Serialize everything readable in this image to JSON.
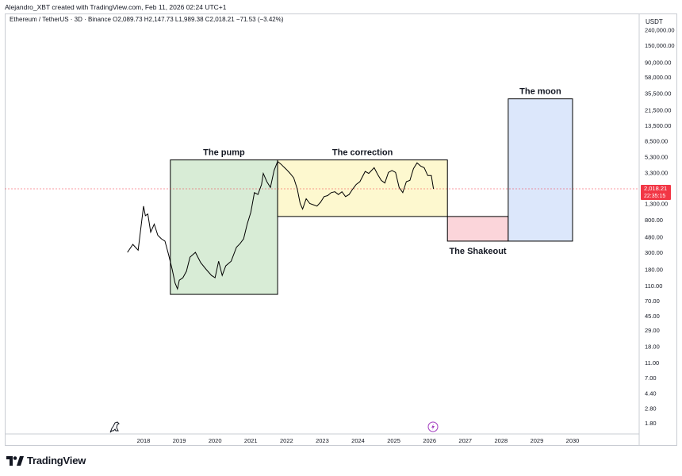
{
  "header": {
    "attribution": "Alejandro_XBT created with TradingView.com, Feb 11, 2026 02:24 UTC+1"
  },
  "symbol": {
    "name": "Ethereum / TetherUS · 3D · Binance",
    "open": "O2,089.73",
    "high": "H2,147.73",
    "low": "L1,989.38",
    "close": "C2,018.21",
    "change": "−71.53 (−3.42%)"
  },
  "price_axis": {
    "currency": "USDT",
    "last_price": "2,018.21",
    "countdown": "22:35:15",
    "ticks": [
      "240,000.00",
      "150,000.00",
      "90,000.00",
      "58,000.00",
      "35,500.00",
      "21,500.00",
      "13,500.00",
      "8,500.00",
      "5,300.00",
      "3,300.00",
      "1,300.00",
      "800.00",
      "480.00",
      "300.00",
      "180.00",
      "110.00",
      "70.00",
      "45.00",
      "29.00",
      "18.00",
      "11.00",
      "7.00",
      "4.40",
      "2.80",
      "1.80"
    ]
  },
  "footer": {
    "brand": "TradingView"
  },
  "colors": {
    "up": "#000000",
    "last_price": "#f23645",
    "pump": "#d8ecd6",
    "correction": "#fdf8cf",
    "shakeout": "#fbd5da",
    "moon": "#dce7fb"
  },
  "chart_data": {
    "type": "line",
    "scale": "log",
    "x_ticks": [
      "2018",
      "2019",
      "2020",
      "2021",
      "2022",
      "2023",
      "2024",
      "2025",
      "2026",
      "2027",
      "2028",
      "2029",
      "2030"
    ],
    "series": [
      {
        "x": [
          2017.55,
          2017.7,
          2017.85,
          2018.0,
          2018.05,
          2018.12,
          2018.2,
          2018.3,
          2018.4,
          2018.5,
          2018.6,
          2018.7,
          2018.8,
          2018.88,
          2018.95,
          2019.0,
          2019.1,
          2019.2,
          2019.3,
          2019.45,
          2019.6,
          2019.75,
          2019.9,
          2020.0,
          2020.1,
          2020.2,
          2020.3,
          2020.45,
          2020.6,
          2020.7,
          2020.8,
          2020.9,
          2021.0,
          2021.1,
          2021.2,
          2021.3,
          2021.35,
          2021.45,
          2021.55,
          2021.65,
          2021.75,
          2021.85,
          2021.92,
          2022.0,
          2022.1,
          2022.2,
          2022.3,
          2022.38,
          2022.45,
          2022.55,
          2022.65,
          2022.75,
          2022.85,
          2022.95,
          2023.05,
          2023.15,
          2023.25,
          2023.35,
          2023.45,
          2023.55,
          2023.65,
          2023.75,
          2023.85,
          2023.95,
          2024.05,
          2024.2,
          2024.3,
          2024.45,
          2024.55,
          2024.65,
          2024.75,
          2024.85,
          2024.95,
          2025.05,
          2025.15,
          2025.25,
          2025.35,
          2025.45,
          2025.55,
          2025.65,
          2025.75,
          2025.85,
          2025.95,
          2026.05,
          2026.11
        ],
        "values": [
          300,
          380,
          320,
          1200,
          900,
          950,
          550,
          700,
          500,
          450,
          420,
          280,
          180,
          120,
          100,
          130,
          140,
          170,
          260,
          300,
          220,
          180,
          150,
          140,
          230,
          150,
          200,
          230,
          350,
          390,
          450,
          700,
          1000,
          1800,
          1700,
          2300,
          3200,
          2500,
          2100,
          3500,
          4600,
          4200,
          3900,
          3600,
          3200,
          2800,
          2000,
          1300,
          1100,
          1500,
          1300,
          1250,
          1200,
          1350,
          1600,
          1650,
          1800,
          1850,
          1700,
          1850,
          1600,
          1700,
          2000,
          2300,
          2500,
          3400,
          3200,
          3800,
          3100,
          2600,
          2400,
          3300,
          3500,
          3300,
          2100,
          1800,
          2500,
          2600,
          3700,
          4400,
          4000,
          3800,
          3000,
          3000,
          2018
        ]
      }
    ],
    "boxes": [
      {
        "label": "The pump",
        "x0": 2018.75,
        "x1": 2021.75,
        "y0": 85,
        "y1": 4800
      },
      {
        "label": "The correction",
        "x0": 2021.75,
        "x1": 2026.5,
        "y0": 880,
        "y1": 4800
      },
      {
        "label": "The Shakeout",
        "x0": 2026.5,
        "x1": 2028.2,
        "y0": 420,
        "y1": 880
      },
      {
        "label": "The moon",
        "x0": 2028.2,
        "x1": 2030.0,
        "y0": 420,
        "y1": 30000
      }
    ]
  }
}
